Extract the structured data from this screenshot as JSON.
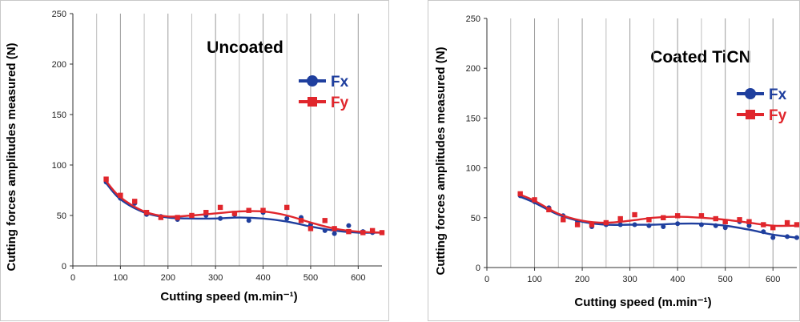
{
  "chart_data": [
    {
      "type": "line",
      "title": "Uncoated",
      "xlabel": "Cutting speed (m.min⁻¹)",
      "ylabel": "Cutting forces amplitudes measured (N)",
      "xlim": [
        0,
        650
      ],
      "ylim": [
        0,
        250
      ],
      "xticks": [
        "0",
        "100",
        "200",
        "300",
        "400",
        "500",
        "600"
      ],
      "yticks": [
        "0",
        "50",
        "100",
        "150",
        "200",
        "250"
      ],
      "legend_position": "top-right",
      "grid": "vertical",
      "series": [
        {
          "name": "Fx",
          "color": "#1f3f9e",
          "marker": "circle",
          "x": [
            70,
            100,
            130,
            155,
            185,
            220,
            250,
            280,
            310,
            340,
            370,
            400,
            450,
            480,
            500,
            530,
            550,
            580,
            610,
            630,
            650
          ],
          "y": [
            83,
            67,
            62,
            51,
            49,
            46,
            49,
            50,
            47,
            51,
            45,
            53,
            47,
            48,
            41,
            35,
            32,
            40,
            34,
            33,
            33
          ],
          "trend_x": [
            70,
            100,
            150,
            200,
            250,
            300,
            350,
            400,
            450,
            500,
            550,
            600,
            650
          ],
          "trend_y": [
            82,
            66,
            53,
            48,
            47,
            47,
            48,
            47,
            44,
            39,
            35,
            33,
            33
          ]
        },
        {
          "name": "Fy",
          "color": "#e0262c",
          "marker": "square",
          "x": [
            70,
            100,
            130,
            155,
            185,
            220,
            250,
            280,
            310,
            340,
            370,
            400,
            450,
            480,
            500,
            530,
            550,
            580,
            610,
            630,
            650
          ],
          "y": [
            86,
            70,
            64,
            53,
            48,
            48,
            50,
            53,
            58,
            52,
            55,
            55,
            58,
            45,
            37,
            45,
            37,
            34,
            33,
            35,
            33
          ],
          "trend_x": [
            70,
            100,
            150,
            200,
            250,
            300,
            350,
            400,
            450,
            500,
            550,
            600,
            650
          ],
          "trend_y": [
            84,
            68,
            54,
            49,
            50,
            52,
            54,
            54,
            50,
            43,
            37,
            34,
            33
          ]
        }
      ]
    },
    {
      "type": "line",
      "title": "Coated TiCN",
      "xlabel": "Cutting speed (m.min⁻¹)",
      "ylabel": "Cutting forces amplitudes measured (N)",
      "xlim": [
        0,
        650
      ],
      "ylim": [
        0,
        250
      ],
      "xticks": [
        "0",
        "100",
        "200",
        "300",
        "400",
        "500",
        "600"
      ],
      "yticks": [
        "0",
        "50",
        "100",
        "150",
        "200",
        "250"
      ],
      "legend_position": "right",
      "grid": "vertical",
      "series": [
        {
          "name": "Fx",
          "color": "#1f3f9e",
          "marker": "circle",
          "x": [
            70,
            100,
            130,
            160,
            190,
            220,
            250,
            280,
            310,
            340,
            370,
            400,
            450,
            480,
            500,
            530,
            550,
            580,
            600,
            630,
            650
          ],
          "y": [
            72,
            66,
            60,
            52,
            46,
            41,
            43,
            43,
            43,
            42,
            41,
            44,
            43,
            42,
            40,
            46,
            42,
            36,
            30,
            31,
            30
          ],
          "trend_x": [
            70,
            100,
            150,
            200,
            250,
            300,
            350,
            400,
            450,
            500,
            550,
            600,
            650
          ],
          "trend_y": [
            71,
            65,
            53,
            46,
            43,
            43,
            43,
            44,
            44,
            42,
            38,
            33,
            30
          ]
        },
        {
          "name": "Fy",
          "color": "#e0262c",
          "marker": "square",
          "x": [
            70,
            100,
            130,
            160,
            190,
            220,
            250,
            280,
            310,
            340,
            370,
            400,
            450,
            480,
            500,
            530,
            550,
            580,
            600,
            630,
            650
          ],
          "y": [
            74,
            68,
            58,
            48,
            43,
            43,
            45,
            49,
            53,
            48,
            50,
            52,
            52,
            49,
            46,
            48,
            46,
            43,
            40,
            45,
            43
          ],
          "trend_x": [
            70,
            100,
            150,
            200,
            250,
            300,
            350,
            400,
            450,
            500,
            550,
            600,
            650
          ],
          "trend_y": [
            73,
            67,
            54,
            47,
            45,
            47,
            50,
            51,
            50,
            48,
            45,
            42,
            42
          ]
        }
      ]
    }
  ]
}
